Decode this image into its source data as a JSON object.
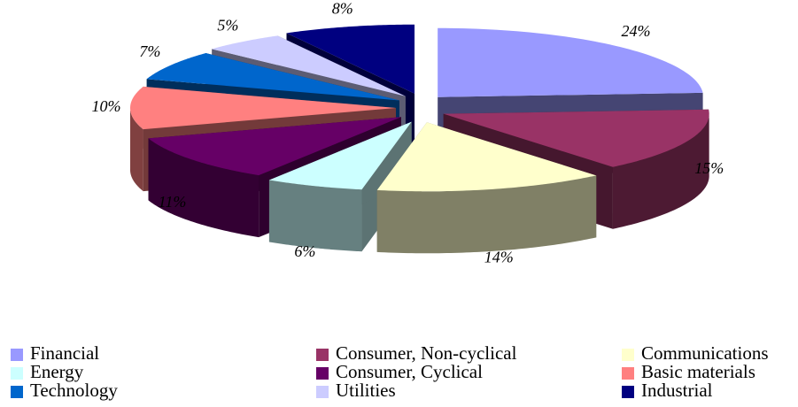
{
  "chart_data": {
    "type": "pie",
    "categories": [
      "Financial",
      "Consumer, Non-cyclical",
      "Communications",
      "Energy",
      "Consumer, Cyclical",
      "Basic materials",
      "Technology",
      "Utilities",
      "Industrial"
    ],
    "values": [
      24,
      15,
      14,
      6,
      11,
      10,
      7,
      5,
      8
    ],
    "value_labels": [
      "24%",
      "15%",
      "14%",
      "6%",
      "11%",
      "10%",
      "7%",
      "5%",
      "8%"
    ],
    "colors": [
      "#9999ff",
      "#993366",
      "#ffffcc",
      "#ccffff",
      "#660066",
      "#ff8080",
      "#0066cc",
      "#ccccff",
      "#000080"
    ]
  }
}
